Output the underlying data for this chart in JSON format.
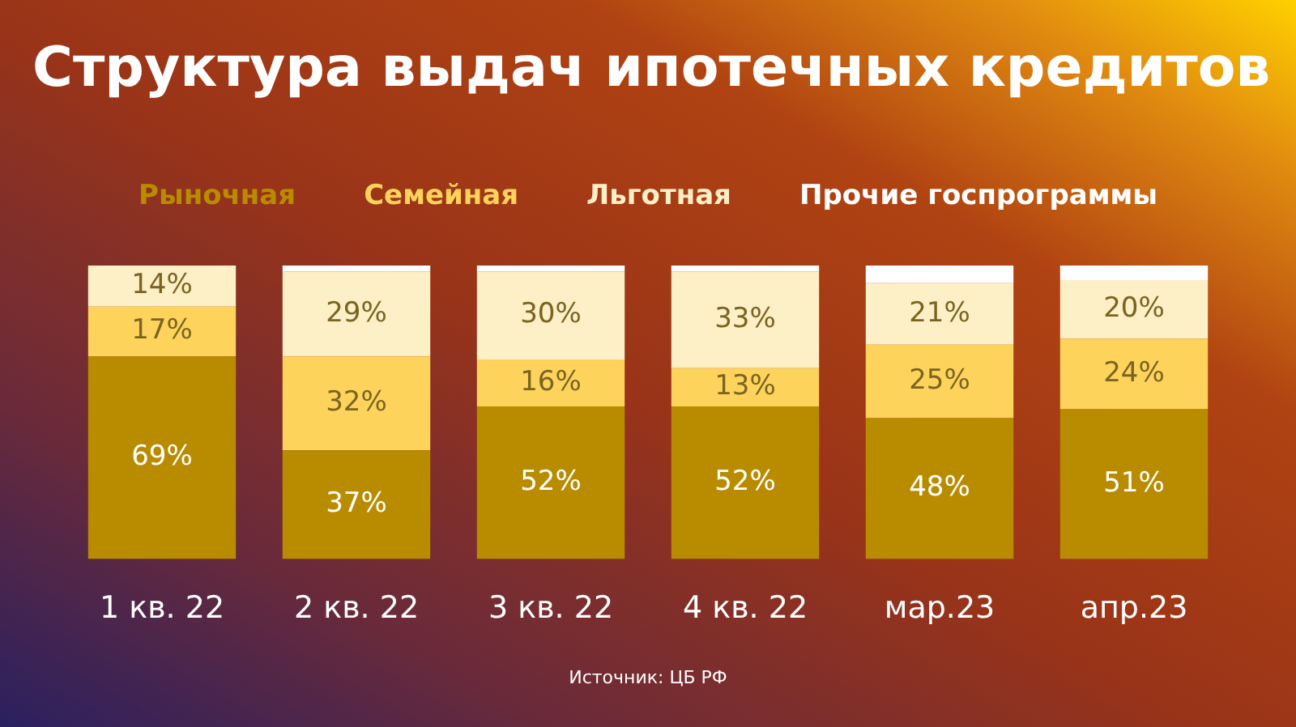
{
  "chart_data": {
    "type": "bar",
    "title": "Структура выдач ипотечных кредитов",
    "categories": [
      "1 кв. 22",
      "2 кв. 22",
      "3 кв. 22",
      "4 кв. 22",
      "мар.23",
      "апр.23"
    ],
    "stacked": true,
    "ylim": [
      0,
      100
    ],
    "tick_labels": "x",
    "legend": "top",
    "grid": false,
    "series": [
      {
        "name": "Рыночная",
        "color": "#b98c00",
        "values": [
          69,
          37,
          52,
          52,
          48,
          51
        ],
        "value_labels": [
          "69%",
          "37%",
          "52%",
          "52%",
          "48%",
          "51%"
        ]
      },
      {
        "name": "Семейная",
        "color": "#fdd35c",
        "values": [
          17,
          32,
          16,
          13,
          25,
          24
        ],
        "value_labels": [
          "17%",
          "32%",
          "16%",
          "13%",
          "25%",
          "24%"
        ]
      },
      {
        "name": "Льготная",
        "color": "#fdefc6",
        "values": [
          14,
          29,
          30,
          33,
          21,
          20
        ],
        "value_labels": [
          "14%",
          "29%",
          "30%",
          "33%",
          "21%",
          "20%"
        ]
      },
      {
        "name": "Прочие госпрограммы",
        "color": "#ffffff",
        "values": [
          0,
          2,
          2,
          2,
          6,
          5
        ],
        "value_labels": [
          null,
          null,
          null,
          null,
          null,
          null
        ]
      }
    ],
    "annotations": [
      "Источник: ЦБ РФ"
    ]
  }
}
